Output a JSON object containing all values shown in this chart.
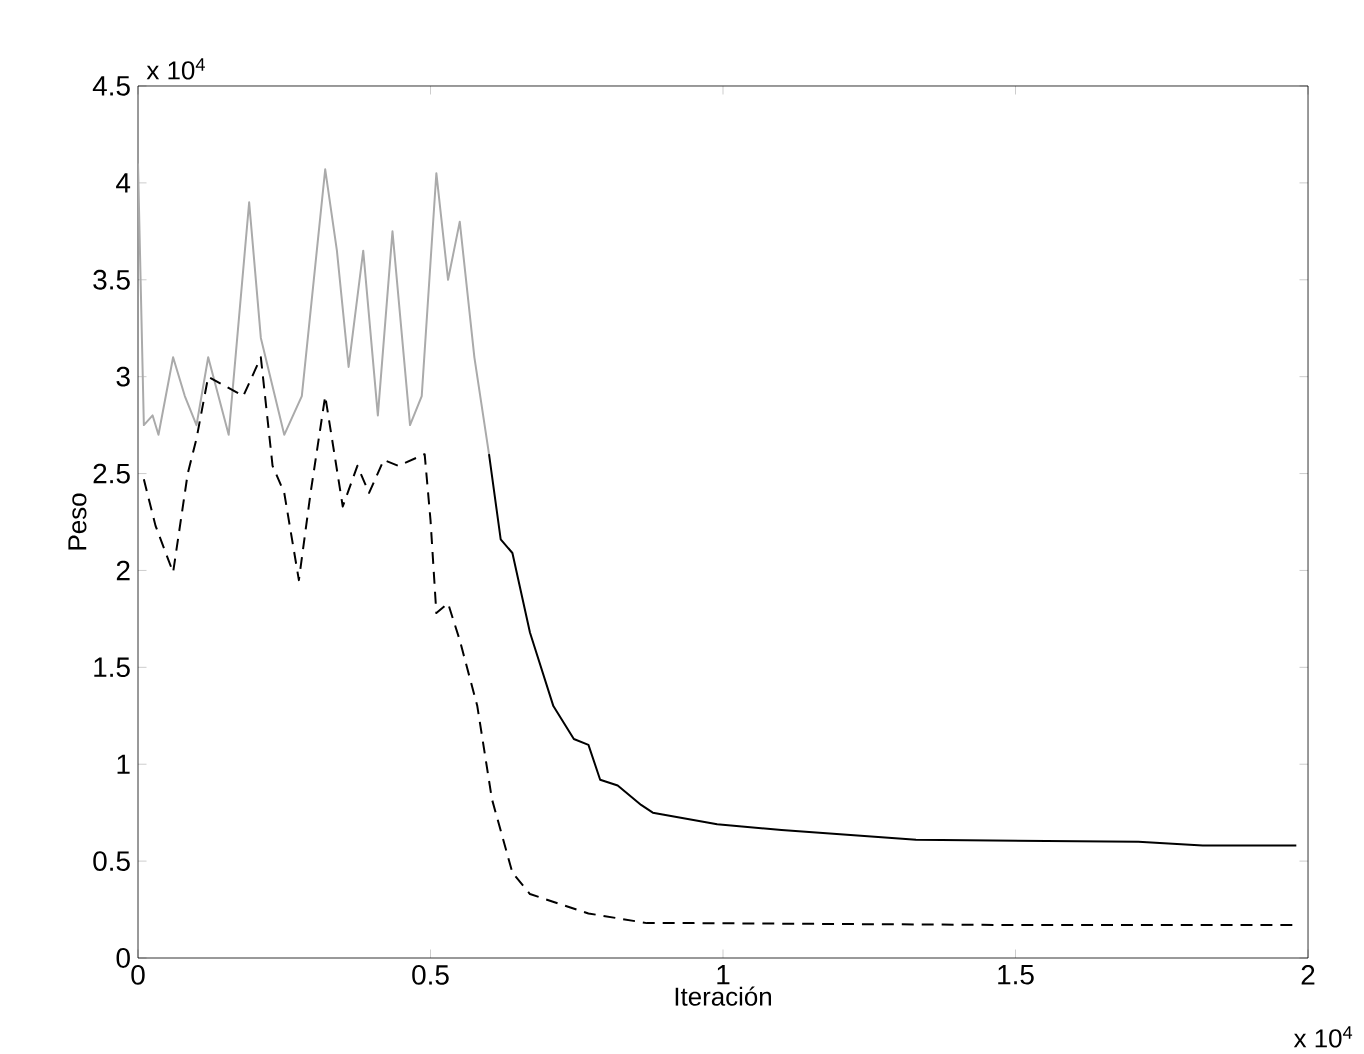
{
  "chart_data": {
    "type": "line",
    "xlabel": "Iteración",
    "ylabel": "Peso",
    "annotations": [
      "x 10$^{4}$",
      "x 10$^{4}$"
    ],
    "xlim": [
      0,
      2
    ],
    "xticks": [
      0,
      0.5,
      1,
      1.5,
      2
    ],
    "ylim": [
      0,
      4.5
    ],
    "yticks": [
      0,
      0.5,
      1,
      1.5,
      2,
      2.5,
      3,
      3.5,
      4,
      4.5
    ],
    "grid": false,
    "series": [
      {
        "color": "#aaaaaa",
        "line_style": "solid",
        "x": [
          0,
          0.01,
          0.025,
          0.035,
          0.06,
          0.08,
          0.1,
          0.12,
          0.155,
          0.19,
          0.21,
          0.25,
          0.28,
          0.32,
          0.34,
          0.36,
          0.385,
          0.41,
          0.435,
          0.465,
          0.485,
          0.51,
          0.53,
          0.55,
          0.575,
          0.6
        ],
        "values": [
          4.1,
          2.75,
          2.8,
          2.7,
          3.1,
          2.9,
          2.75,
          3.1,
          2.7,
          3.9,
          3.2,
          2.7,
          2.9,
          4.07,
          3.65,
          3.05,
          3.65,
          2.8,
          3.75,
          2.75,
          2.9,
          4.05,
          3.5,
          3.8,
          3.1,
          2.6
        ]
      },
      {
        "color": "#000000",
        "line_style": "solid",
        "x": [
          0.6,
          0.62,
          0.64,
          0.67,
          0.71,
          0.745,
          0.77,
          0.79,
          0.82,
          0.86,
          0.88,
          0.99,
          1.1,
          1.33,
          1.71,
          1.82,
          1.98
        ],
        "values": [
          2.6,
          2.16,
          2.09,
          1.68,
          1.3,
          1.13,
          1.1,
          0.92,
          0.89,
          0.79,
          0.75,
          0.69,
          0.66,
          0.61,
          0.6,
          0.58,
          0.58
        ]
      },
      {
        "color": "#000000",
        "line_style": "dashed",
        "x": [
          0.01,
          0.03,
          0.06,
          0.085,
          0.1,
          0.12,
          0.18,
          0.21,
          0.23,
          0.25,
          0.275,
          0.295,
          0.32,
          0.35,
          0.375,
          0.395,
          0.42,
          0.445,
          0.49,
          0.5,
          0.51,
          0.53,
          0.55,
          0.58,
          0.605,
          0.64,
          0.67,
          0.77,
          0.87,
          0.95,
          1.5,
          1.98
        ],
        "values": [
          2.47,
          2.23,
          1.99,
          2.5,
          2.68,
          3.0,
          2.9,
          3.1,
          2.54,
          2.4,
          1.95,
          2.4,
          2.9,
          2.33,
          2.54,
          2.4,
          2.57,
          2.54,
          2.6,
          2.26,
          1.78,
          1.83,
          1.64,
          1.3,
          0.82,
          0.44,
          0.33,
          0.23,
          0.18,
          0.18,
          0.17,
          0.17
        ]
      }
    ]
  }
}
